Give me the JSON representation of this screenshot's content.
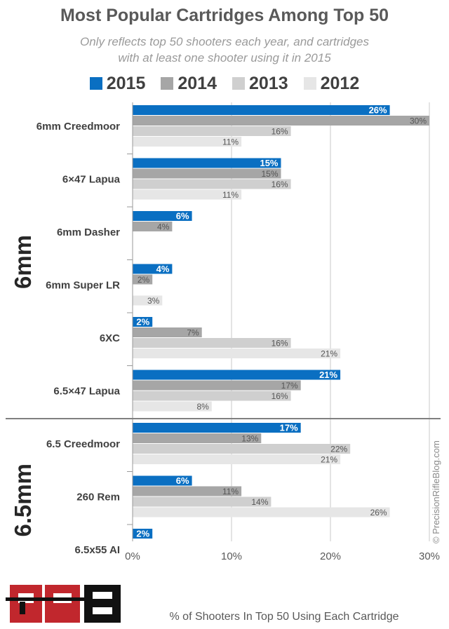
{
  "title": "Most Popular Cartridges Among Top 50",
  "subtitle_line1": "Only reflects top 50 shooters each year, and cartridges",
  "subtitle_line2": "with at least one shooter using it in 2015",
  "watermark": "© PrecisionRifleBlog.com",
  "logo_text": "PRB",
  "colors": {
    "s2015": "#0a6fc2",
    "s2014": "#a6a6a6",
    "s2013": "#cfcfcf",
    "s2012": "#e6e6e6"
  },
  "chart_data": {
    "type": "bar",
    "orientation": "horizontal",
    "xlabel": "% of Shooters In Top 50 Using Each Cartridge",
    "xlim": [
      0,
      30
    ],
    "x_ticks": [
      "0%",
      "10%",
      "20%",
      "30%"
    ],
    "grid": true,
    "legend_position": "top",
    "groups": [
      {
        "label": "6mm",
        "categories": [
          "6mm Creedmoor",
          "6×47 Lapua",
          "6mm Dasher",
          "6mm Super LR",
          "6XC",
          "6.5×47 Lapua"
        ]
      },
      {
        "label": "6.5mm",
        "categories": [
          "6.5 Creedmoor",
          "260 Rem",
          "6.5x55 AI"
        ]
      }
    ],
    "categories": [
      "6mm Creedmoor",
      "6×47 Lapua",
      "6mm Dasher",
      "6mm Super LR",
      "6XC",
      "6.5×47 Lapua",
      "6.5 Creedmoor",
      "260 Rem",
      "6.5x55 AI"
    ],
    "series": [
      {
        "name": "2015",
        "values": [
          26,
          15,
          6,
          4,
          2,
          21,
          17,
          6,
          2
        ],
        "labels": [
          "26%",
          "15%",
          "6%",
          "4%",
          "2%",
          "21%",
          "17%",
          "6%",
          "2%"
        ]
      },
      {
        "name": "2014",
        "values": [
          30,
          15,
          4,
          2,
          7,
          17,
          13,
          11,
          null
        ],
        "labels": [
          "30%",
          "15%",
          "4%",
          "2%",
          "7%",
          "17%",
          "13%",
          "11%",
          ""
        ]
      },
      {
        "name": "2013",
        "values": [
          16,
          16,
          null,
          null,
          16,
          16,
          22,
          14,
          null
        ],
        "labels": [
          "16%",
          "16%",
          "",
          "",
          "16%",
          "16%",
          "22%",
          "14%",
          ""
        ]
      },
      {
        "name": "2012",
        "values": [
          11,
          11,
          null,
          3,
          21,
          8,
          21,
          26,
          null
        ],
        "labels": [
          "11%",
          "11%",
          "",
          "3%",
          "21%",
          "8%",
          "21%",
          "26%",
          ""
        ]
      }
    ]
  }
}
